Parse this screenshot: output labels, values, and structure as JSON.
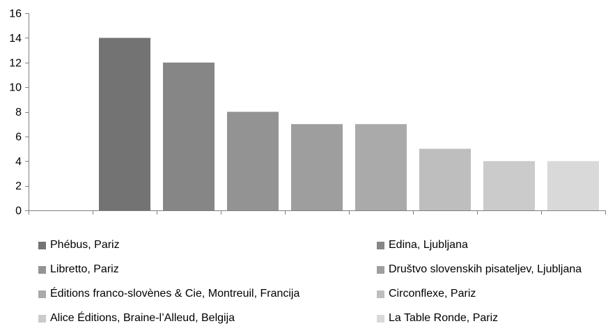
{
  "chart_data": {
    "type": "bar",
    "categories": [
      "Phébus, Pariz",
      "Edina, Ljubljana",
      "Libretto, Pariz",
      "Društvo slovenskih pisateljev, Ljubljana",
      "Éditions franco-slovènes & Cie, Montreuil, Francija",
      "Circonflexe, Pariz",
      "Alice Éditions, Braine-l’Alleud, Belgija",
      "La Table Ronde, Pariz"
    ],
    "values": [
      14,
      12,
      8,
      7,
      7,
      5,
      4,
      4
    ],
    "colors": [
      "#737373",
      "#868686",
      "#939393",
      "#9e9e9e",
      "#aaaaaa",
      "#bebebe",
      "#cbcbcb",
      "#d9d9d9"
    ],
    "ylim": [
      0,
      16
    ],
    "yticks": [
      "0",
      "2",
      "4",
      "6",
      "8",
      "10",
      "12",
      "14",
      "16"
    ],
    "title": "",
    "xlabel": "",
    "ylabel": "",
    "grid": false,
    "legend_position": "bottom"
  }
}
